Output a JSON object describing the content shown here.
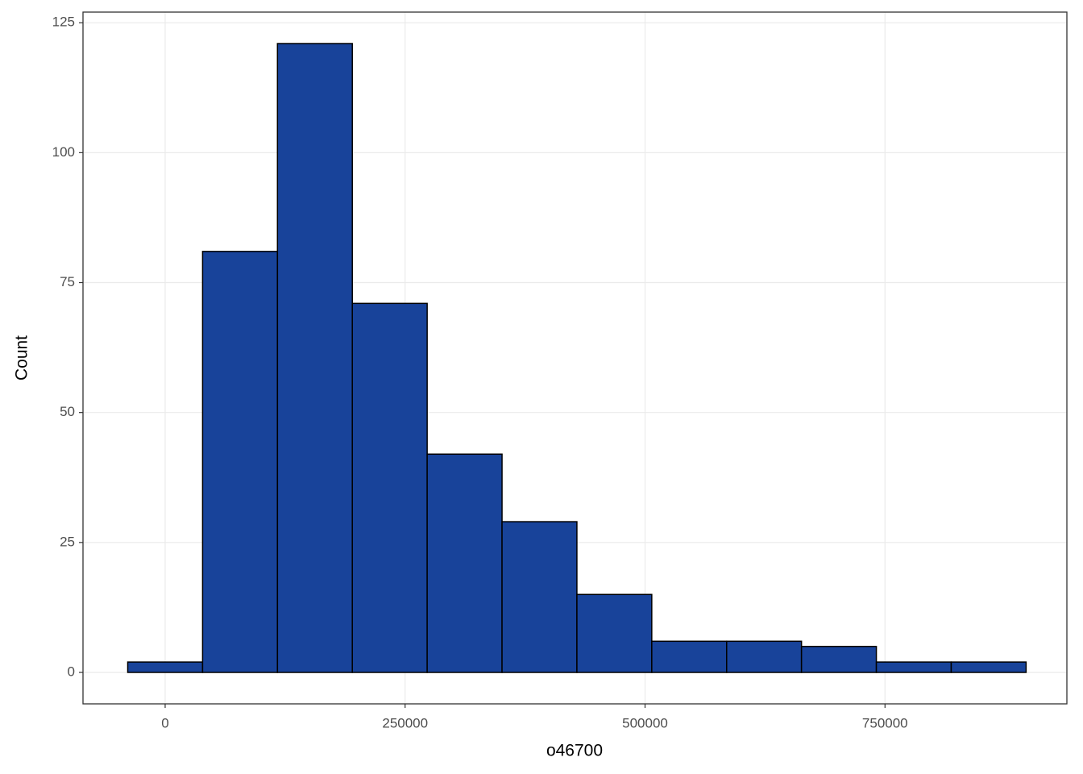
{
  "chart_data": {
    "type": "histogram",
    "x_label": "o46700",
    "y_label": "Count",
    "bins": [
      -39000,
      39000,
      117000,
      195000,
      273000,
      351000,
      429000,
      507000,
      585000,
      663000,
      741000,
      819000,
      897000
    ],
    "values": [
      2,
      81,
      121,
      71,
      42,
      29,
      15,
      6,
      6,
      5,
      2,
      2
    ],
    "color": "#18439a",
    "xlim": [
      -85600,
      939500
    ],
    "xticks": [
      0,
      250000,
      500000,
      750000
    ],
    "ylim": [
      -6.05,
      127.05
    ],
    "yticks": [
      0,
      25,
      50,
      75,
      100,
      125
    ],
    "grid": true
  }
}
